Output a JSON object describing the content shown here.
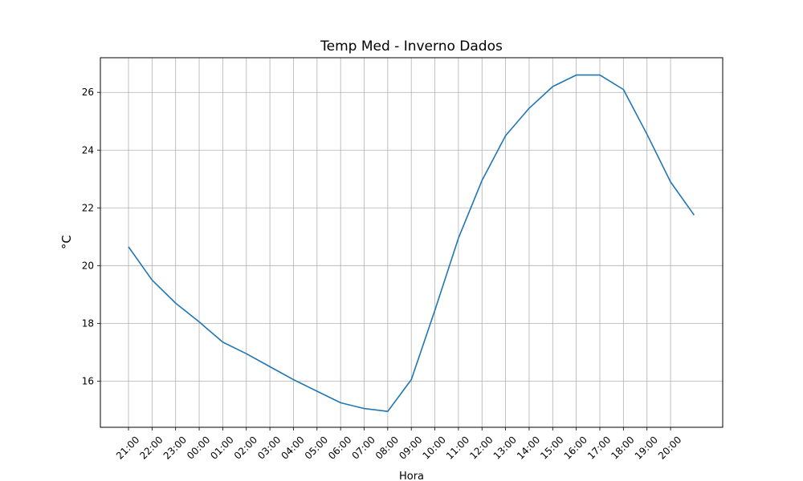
{
  "chart_data": {
    "type": "line",
    "title": "Temp Med - Inverno Dados",
    "xlabel": "Hora",
    "ylabel": "°C",
    "grid": true,
    "line_color": "#1f77b4",
    "x_tick_labels": [
      "21:00",
      "22:00",
      "23:00",
      "00:00",
      "01:00",
      "02:00",
      "03:00",
      "04:00",
      "05:00",
      "06:00",
      "07:00",
      "08:00",
      "09:00",
      "10:00",
      "11:00",
      "12:00",
      "13:00",
      "14:00",
      "15:00",
      "16:00",
      "17:00",
      "18:00",
      "19:00",
      "20:00"
    ],
    "y_ticks": [
      16,
      18,
      20,
      22,
      24,
      26
    ],
    "ylim": [
      14.4,
      27.2
    ],
    "series": [
      {
        "values": [
          20.65,
          19.5,
          18.7,
          18.05,
          17.35,
          16.95,
          16.5,
          16.05,
          15.65,
          15.25,
          15.05,
          14.95,
          16.05,
          18.45,
          20.95,
          22.95,
          24.5,
          25.45,
          26.2,
          26.6,
          26.6,
          26.1,
          24.55,
          22.9,
          21.75
        ]
      }
    ]
  }
}
